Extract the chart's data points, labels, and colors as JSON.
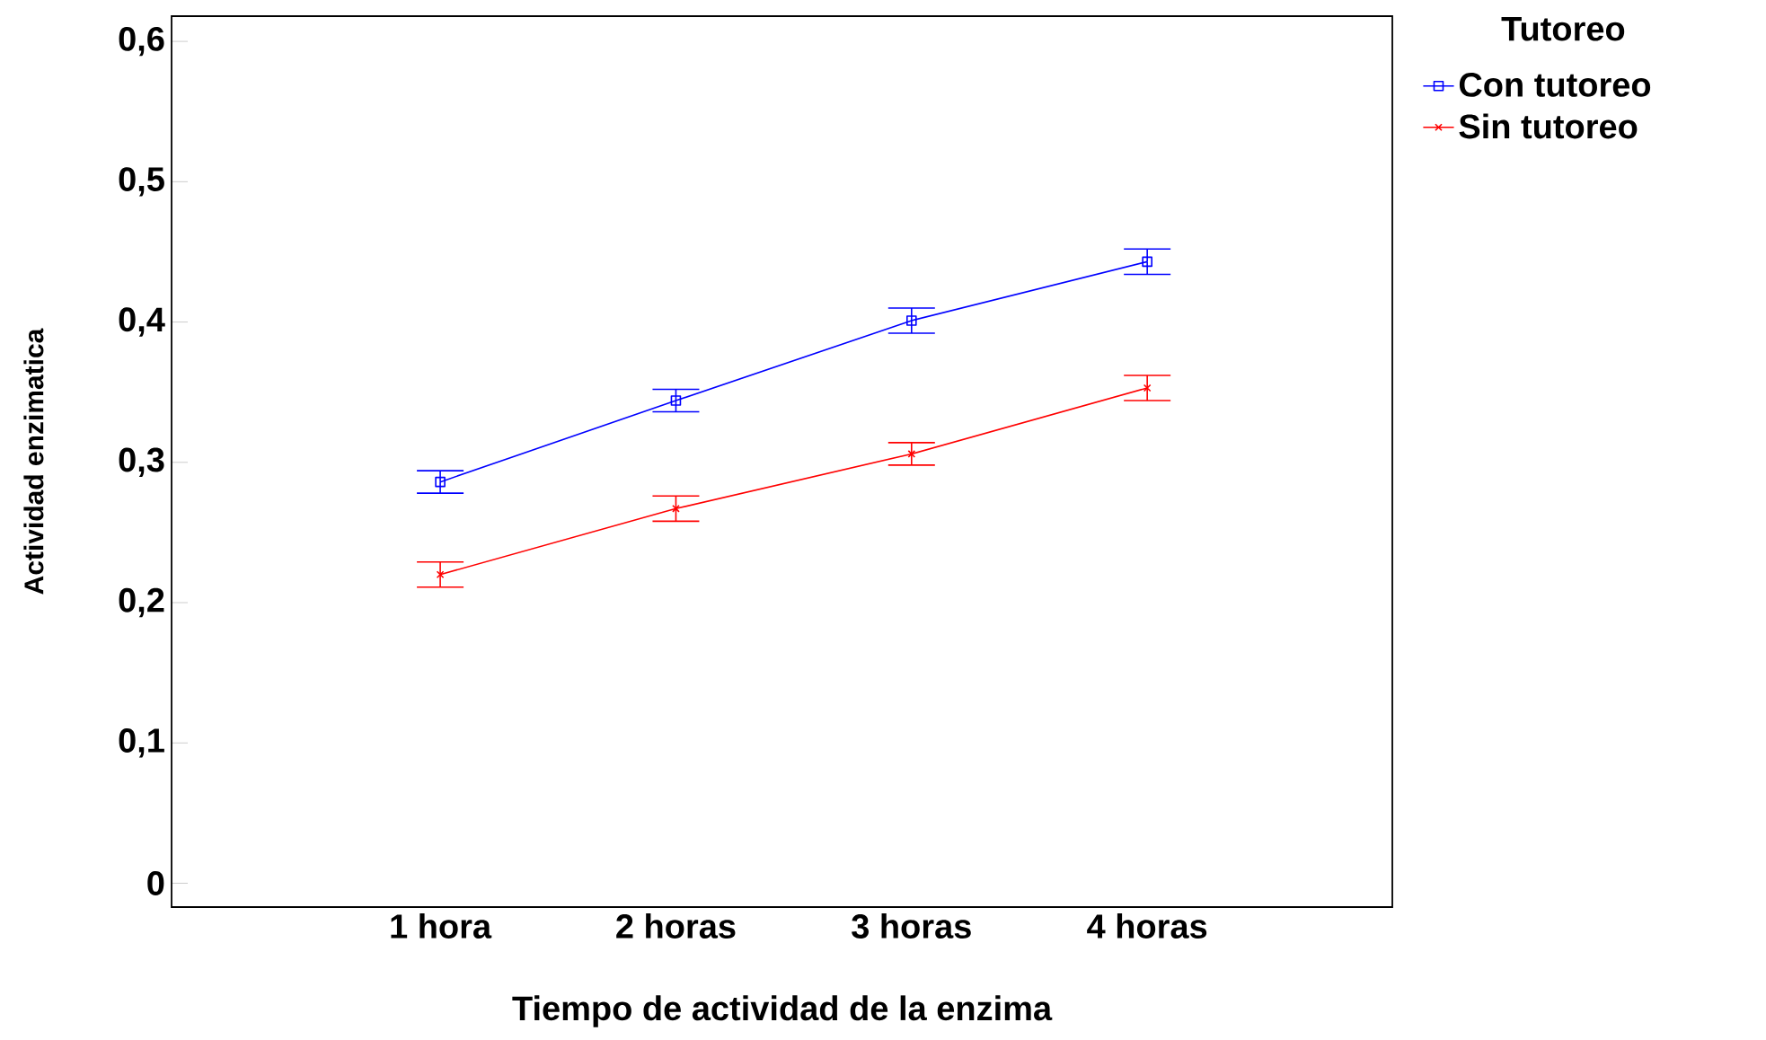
{
  "chart_data": {
    "type": "line",
    "xlabel": "Tiempo de actividad de la enzima",
    "ylabel": "Actividad enzimatica",
    "legend_title": "Tutoreo",
    "legend": "top right",
    "grid": false,
    "categories": [
      "1 hora",
      "2 horas",
      "3 horas",
      "4 horas"
    ],
    "ylim": [
      -0.017,
      0.618
    ],
    "yticks": [
      {
        "value": 0,
        "label": "0"
      },
      {
        "value": 0.1,
        "label": "0,1"
      },
      {
        "value": 0.2,
        "label": "0,2"
      },
      {
        "value": 0.3,
        "label": "0,3"
      },
      {
        "value": 0.4,
        "label": "0,4"
      },
      {
        "value": 0.5,
        "label": "0,5"
      },
      {
        "value": 0.6,
        "label": "0,6"
      }
    ],
    "series": [
      {
        "name": "Con tutoreo",
        "color": "#0000ff",
        "marker": "square",
        "values": [
          0.286,
          0.344,
          0.401,
          0.443
        ],
        "errors": [
          0.008,
          0.008,
          0.009,
          0.009
        ]
      },
      {
        "name": "Sin tutoreo",
        "color": "#ff0000",
        "marker": "cross",
        "values": [
          0.22,
          0.267,
          0.306,
          0.353
        ],
        "errors": [
          0.009,
          0.009,
          0.008,
          0.009
        ]
      }
    ]
  }
}
